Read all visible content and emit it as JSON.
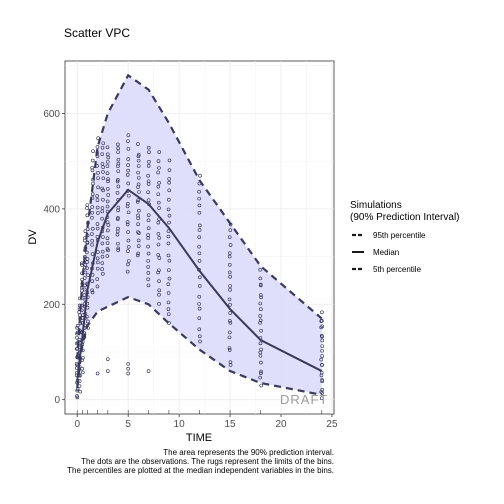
{
  "chart_data": {
    "type": "scatter",
    "title": "Scatter VPC",
    "xlabel": "TIME",
    "ylabel": "DV",
    "xlim": [
      -1.2,
      25.2
    ],
    "ylim": [
      -30,
      710
    ],
    "x_ticks": [
      0,
      5,
      10,
      15,
      20,
      25
    ],
    "y_ticks": [
      0,
      200,
      400,
      600
    ],
    "grid": true,
    "legend": {
      "title_line1": "Simulations",
      "title_line2": "(90% Prediction Interval)",
      "position": "right",
      "entries": [
        "95th percentile",
        "Median",
        "5th percentile"
      ]
    },
    "watermark": "DRAFT",
    "caption": [
      "The area represents the 90% prediction interval.",
      "The dots are the observations. The rugs represent the limits of the bins.",
      "The percentiles are plotted at the median independent variables in the bins."
    ],
    "colors": {
      "band": "#dcdcfb",
      "line": "#3a3a5c",
      "points": "#2b2b4f"
    },
    "percentiles": {
      "x": [
        0,
        0.5,
        1,
        2,
        3,
        5,
        7,
        9,
        12,
        15,
        18,
        24
      ],
      "p95": [
        85,
        250,
        360,
        530,
        600,
        680,
        650,
        580,
        460,
        370,
        280,
        170
      ],
      "median": [
        40,
        130,
        230,
        330,
        390,
        440,
        410,
        360,
        270,
        190,
        125,
        60
      ],
      "p5": [
        25,
        115,
        155,
        185,
        195,
        215,
        200,
        160,
        105,
        60,
        35,
        10
      ]
    },
    "observations": {
      "times": [
        0,
        0.25,
        0.5,
        0.75,
        1,
        1.5,
        2,
        2.5,
        3,
        4,
        5,
        6,
        7,
        8,
        9,
        12,
        15,
        18,
        24
      ],
      "ranges": [
        [
          5,
          160
        ],
        [
          20,
          210
        ],
        [
          60,
          290
        ],
        [
          130,
          350
        ],
        [
          150,
          410
        ],
        [
          220,
          520
        ],
        [
          240,
          550
        ],
        [
          260,
          540
        ],
        [
          300,
          530
        ],
        [
          310,
          540
        ],
        [
          270,
          550
        ],
        [
          300,
          530
        ],
        [
          240,
          530
        ],
        [
          200,
          520
        ],
        [
          160,
          500
        ],
        [
          120,
          470
        ],
        [
          70,
          370
        ],
        [
          30,
          270
        ],
        [
          0,
          180
        ]
      ],
      "outliers": [
        [
          2,
          55
        ],
        [
          3,
          60
        ],
        [
          3,
          85
        ],
        [
          5,
          55
        ],
        [
          5,
          65
        ],
        [
          5,
          75
        ],
        [
          7,
          60
        ]
      ]
    },
    "rug_x": [
      0,
      0.5,
      1,
      2,
      3,
      5,
      7,
      9,
      12,
      15,
      18,
      24
    ]
  }
}
